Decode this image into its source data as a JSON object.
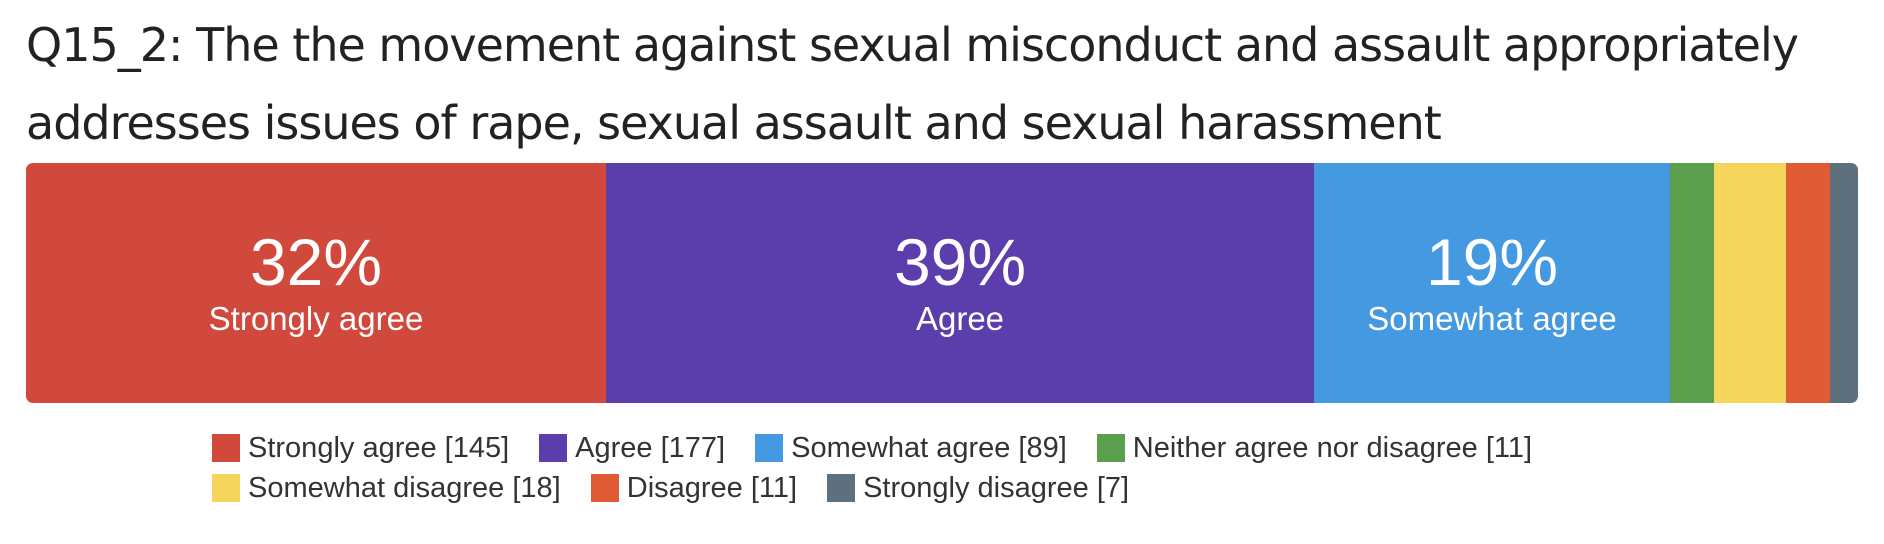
{
  "chart_data": {
    "type": "bar",
    "orientation": "horizontal-stacked-100",
    "title": "Q15_2: The the movement against sexual misconduct and assault appropriately addresses issues of rape, sexual assault and sexual harassment",
    "series": [
      {
        "name": "Strongly agree",
        "count": 145,
        "percent_label": "32%",
        "color": "#d1483d"
      },
      {
        "name": "Agree",
        "count": 177,
        "percent_label": "39%",
        "color": "#5b3dab"
      },
      {
        "name": "Somewhat agree",
        "count": 89,
        "percent_label": "19%",
        "color": "#4499e0"
      },
      {
        "name": "Neither agree nor disagree",
        "count": 11,
        "percent_label": "",
        "color": "#5a9e4e"
      },
      {
        "name": "Somewhat disagree",
        "count": 18,
        "percent_label": "",
        "color": "#f6d55c"
      },
      {
        "name": "Disagree",
        "count": 11,
        "percent_label": "",
        "color": "#e05a34"
      },
      {
        "name": "Strongly disagree",
        "count": 7,
        "percent_label": "",
        "color": "#5f6f7c"
      }
    ],
    "legend_rows": [
      [
        "Strongly agree [145]",
        "Agree [177]",
        "Somewhat agree [89]",
        "Neither agree nor disagree [11]"
      ],
      [
        "Somewhat disagree [18]",
        "Disagree [11]",
        "Strongly disagree [7]"
      ]
    ],
    "legend_position": "bottom-center",
    "grid": false
  }
}
